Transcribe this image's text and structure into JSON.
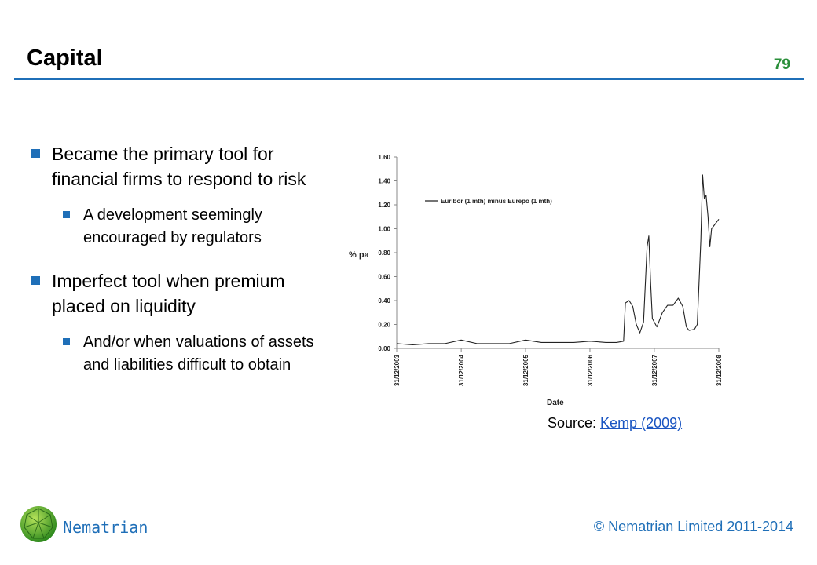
{
  "slide": {
    "title": "Capital",
    "page_number": "79"
  },
  "bullets": [
    {
      "text": "Became the primary tool for financial firms to respond to risk",
      "sub": "A development seemingly encouraged by regulators"
    },
    {
      "text": "Imperfect tool when premium placed on liquidity",
      "sub": "And/or when valuations of assets and liabilities difficult to obtain"
    }
  ],
  "chart_data": {
    "type": "line",
    "ylabel": "% pa",
    "xlabel": "Date",
    "ylim": [
      0,
      1.6
    ],
    "y_ticks": [
      "0.00",
      "0.20",
      "0.40",
      "0.60",
      "0.80",
      "1.00",
      "1.20",
      "1.40",
      "1.60"
    ],
    "x_ticks": [
      "31/12/2003",
      "31/12/2004",
      "31/12/2005",
      "31/12/2006",
      "31/12/2007",
      "31/12/2008"
    ],
    "legend_position": "top-left",
    "series": [
      {
        "name": "Euribor (1 mth) minus Eurepo (1 mth)",
        "color": "#222222",
        "points": [
          [
            "31/12/2003",
            0.04
          ],
          [
            "31/03/2004",
            0.03
          ],
          [
            "30/06/2004",
            0.04
          ],
          [
            "30/09/2004",
            0.04
          ],
          [
            "31/12/2004",
            0.07
          ],
          [
            "31/03/2005",
            0.04
          ],
          [
            "30/06/2005",
            0.04
          ],
          [
            "30/09/2005",
            0.04
          ],
          [
            "31/12/2005",
            0.07
          ],
          [
            "31/03/2006",
            0.05
          ],
          [
            "30/06/2006",
            0.05
          ],
          [
            "30/09/2006",
            0.05
          ],
          [
            "31/12/2006",
            0.06
          ],
          [
            "31/03/2007",
            0.05
          ],
          [
            "31/05/2007",
            0.05
          ],
          [
            "10/07/2007",
            0.06
          ],
          [
            "20/07/2007",
            0.38
          ],
          [
            "10/08/2007",
            0.4
          ],
          [
            "31/08/2007",
            0.35
          ],
          [
            "20/09/2007",
            0.2
          ],
          [
            "10/10/2007",
            0.13
          ],
          [
            "31/10/2007",
            0.22
          ],
          [
            "20/11/2007",
            0.85
          ],
          [
            "30/11/2007",
            0.94
          ],
          [
            "10/12/2007",
            0.55
          ],
          [
            "20/12/2007",
            0.25
          ],
          [
            "15/01/2008",
            0.18
          ],
          [
            "15/02/2008",
            0.3
          ],
          [
            "15/03/2008",
            0.36
          ],
          [
            "15/04/2008",
            0.36
          ],
          [
            "15/05/2008",
            0.42
          ],
          [
            "10/06/2008",
            0.35
          ],
          [
            "30/06/2008",
            0.18
          ],
          [
            "15/07/2008",
            0.15
          ],
          [
            "15/08/2008",
            0.16
          ],
          [
            "31/08/2008",
            0.2
          ],
          [
            "20/09/2008",
            0.9
          ],
          [
            "30/09/2008",
            1.45
          ],
          [
            "10/10/2008",
            1.25
          ],
          [
            "20/10/2008",
            1.28
          ],
          [
            "31/10/2008",
            1.1
          ],
          [
            "10/11/2008",
            0.85
          ],
          [
            "20/11/2008",
            1.0
          ],
          [
            "31/12/2008",
            1.08
          ]
        ]
      }
    ]
  },
  "source": {
    "prefix": "Source: ",
    "link_text": "Kemp (2009)"
  },
  "footer": {
    "brand": "Nematrian",
    "copyright": "© Nematrian Limited 2011-2014"
  },
  "colors": {
    "accent": "#1f6fb8",
    "page_number": "#2a8f3a",
    "link": "#1a55c2"
  }
}
